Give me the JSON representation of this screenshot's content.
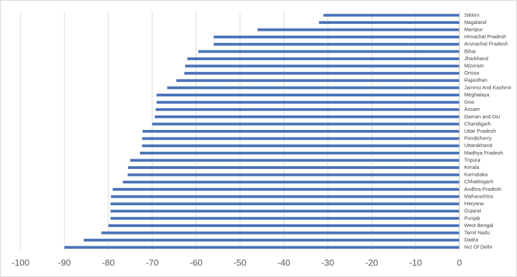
{
  "chart_data": {
    "type": "hbar",
    "categories": [
      "Sikkim",
      "Nagaland",
      "Manipur",
      "Himachal Pradesh",
      "Arunachal Pradesh",
      "Bihar",
      "Jharkhand",
      "Mizoram",
      "Orissa",
      "Rajasthan",
      "Jammu And Kashmir",
      "Meghalaya",
      "Goa",
      "Assam",
      "Daman and Diu",
      "Chandigarh",
      "Uttar Pradesh",
      "Pondicherry",
      "Uttarakhand",
      "Madhya Pradesh",
      "Tripura",
      "Kerala",
      "Karnataka",
      "Chhattisgarh",
      "Andhra Pradesh",
      "Maharashtra",
      "Haryana",
      "Gujarat",
      "Punjab",
      "West Bengal",
      "Tamil Nadu",
      "Dadra",
      "Nct Of Delhi"
    ],
    "values": [
      -31,
      -32,
      -46,
      -56,
      -56,
      -59.5,
      -62,
      -62.5,
      -62.7,
      -64.5,
      -66.6,
      -69,
      -69,
      -69.2,
      -69.4,
      -70,
      -72.2,
      -72.3,
      -72.3,
      -72.8,
      -75,
      -75.5,
      -75.6,
      -76.7,
      -79,
      -79.4,
      -79.5,
      -79.5,
      -79.5,
      -80,
      -81.6,
      -85.6,
      -90
    ],
    "color": "#4a72b8",
    "xlim": [
      -100,
      0
    ],
    "xticks": [
      -100,
      -90,
      -80,
      -70,
      -60,
      -50,
      -40,
      -30,
      -20,
      -10,
      0
    ],
    "grid": true
  }
}
